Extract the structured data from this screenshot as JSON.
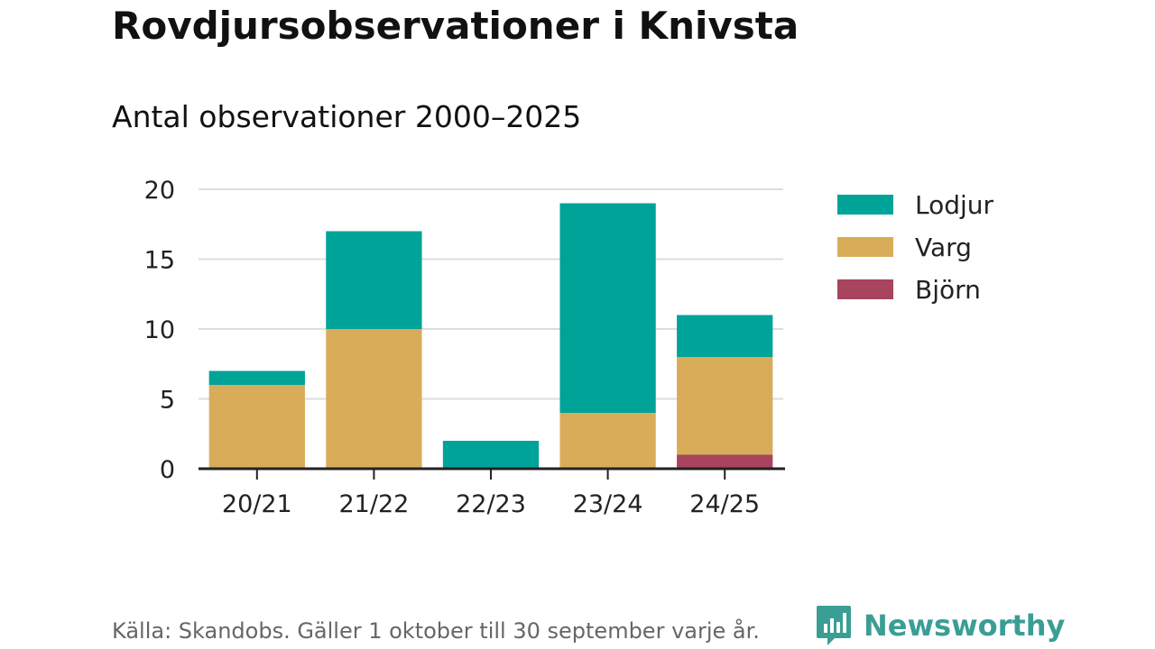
{
  "title": "Rovdjursobservationer i Knivsta",
  "subtitle": "Antal observationer 2000–2025",
  "source": "Källa: Skandobs. Gäller 1 oktober till 30 september varje år.",
  "brand": "Newsworthy",
  "colors": {
    "lodjur": "#00a398",
    "varg": "#d9ac5a",
    "bjorn": "#a8445e",
    "grid": "#dddddd",
    "axis": "#222222",
    "brand": "#3a9e95"
  },
  "chart_data": {
    "type": "bar",
    "stacked": true,
    "categories": [
      "20/21",
      "21/22",
      "22/23",
      "23/24",
      "24/25"
    ],
    "series": [
      {
        "name": "Björn",
        "color": "#a8445e",
        "values": [
          0,
          0,
          0,
          0,
          1
        ]
      },
      {
        "name": "Varg",
        "color": "#d9ac5a",
        "values": [
          6,
          10,
          0,
          4,
          7
        ]
      },
      {
        "name": "Lodjur",
        "color": "#00a398",
        "values": [
          1,
          7,
          2,
          15,
          3
        ]
      }
    ],
    "legend": [
      "Lodjur",
      "Varg",
      "Björn"
    ],
    "legend_position": "right",
    "ylim": [
      0,
      20
    ],
    "yticks": [
      0,
      5,
      10,
      15,
      20
    ],
    "grid": true
  }
}
